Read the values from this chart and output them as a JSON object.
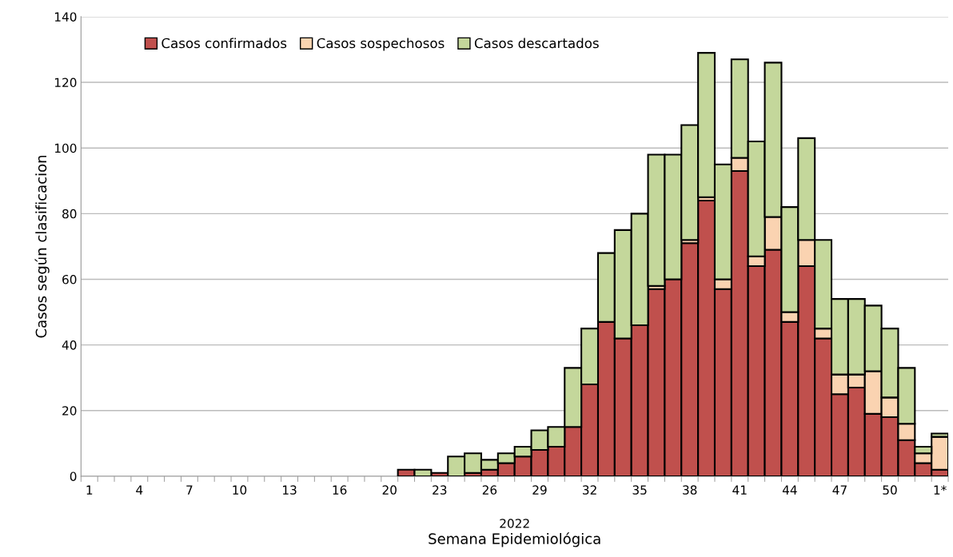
{
  "chart_data": {
    "type": "bar",
    "stacked": true,
    "xlabel": "Semana Epidemiológica",
    "ylabel": "Casos según clasificacion",
    "annotations": [
      "2022"
    ],
    "categories": [
      "1",
      null,
      null,
      "4",
      null,
      null,
      "7",
      null,
      null,
      "10",
      null,
      null,
      "13",
      null,
      null,
      "16",
      null,
      null,
      "20",
      null,
      null,
      "23",
      null,
      null,
      "26",
      null,
      null,
      "29",
      null,
      null,
      "32",
      null,
      null,
      "35",
      null,
      null,
      "38",
      null,
      null,
      "41",
      null,
      null,
      "44",
      null,
      null,
      "47",
      null,
      null,
      "50",
      null,
      null,
      "1*"
    ],
    "series": [
      {
        "name": "Casos confirmados",
        "color": "#c0504d",
        "values": [
          null,
          null,
          null,
          null,
          null,
          null,
          null,
          null,
          null,
          null,
          null,
          null,
          null,
          null,
          null,
          null,
          null,
          null,
          null,
          2,
          null,
          1,
          null,
          1,
          2,
          4,
          6,
          8,
          9,
          15,
          28,
          47,
          42,
          46,
          57,
          60,
          71,
          84,
          57,
          93,
          64,
          69,
          47,
          64,
          42,
          25,
          27,
          19,
          18,
          11,
          4,
          2
        ]
      },
      {
        "name": "Casos sospechosos",
        "color": "#fad3b1",
        "values": [
          null,
          null,
          null,
          null,
          null,
          null,
          null,
          null,
          null,
          null,
          null,
          null,
          null,
          null,
          null,
          null,
          null,
          null,
          null,
          null,
          null,
          null,
          null,
          null,
          null,
          null,
          null,
          null,
          null,
          null,
          null,
          null,
          null,
          null,
          1,
          null,
          1,
          1,
          3,
          4,
          3,
          10,
          3,
          8,
          3,
          6,
          4,
          13,
          6,
          5,
          3,
          10
        ]
      },
      {
        "name": "Casos descartados",
        "color": "#c4d79b",
        "values": [
          null,
          null,
          null,
          null,
          null,
          null,
          null,
          null,
          null,
          null,
          null,
          null,
          null,
          null,
          null,
          null,
          null,
          null,
          null,
          null,
          2,
          null,
          6,
          6,
          3,
          3,
          3,
          6,
          6,
          18,
          17,
          21,
          33,
          34,
          40,
          38,
          35,
          44,
          35,
          30,
          35,
          47,
          32,
          31,
          27,
          23,
          23,
          20,
          21,
          17,
          2,
          1
        ]
      }
    ],
    "ylim": [
      0,
      140
    ],
    "yticks": [
      0,
      20,
      40,
      60,
      80,
      100,
      120,
      140
    ],
    "grid": "y",
    "legend": "top left"
  }
}
